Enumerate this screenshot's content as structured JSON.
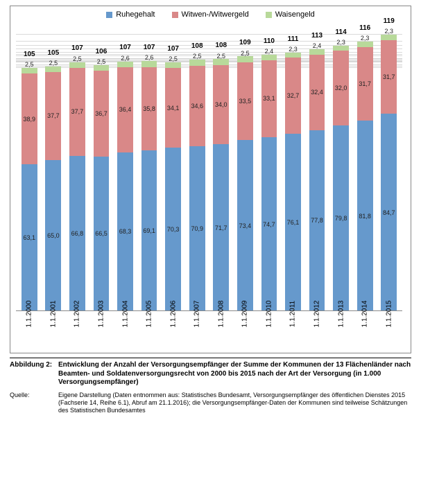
{
  "chart": {
    "type": "stacked-bar",
    "legend": [
      {
        "key": "ruhegehalt",
        "label": "Ruhegehalt",
        "color": "#6699cc"
      },
      {
        "key": "witwen",
        "label": "Witwen-/Witwergeld",
        "color": "#d98888"
      },
      {
        "key": "waisen",
        "label": "Waisengeld",
        "color": "#b8d99a"
      }
    ],
    "label_fontsize": 10,
    "total_fontsize": 10,
    "grid_color": "#d9d9d9",
    "baseline_color": "#888888",
    "ymax": 125,
    "categories": [
      "1.1.2000",
      "1.1.2001",
      "1.1.2002",
      "1.1.2003",
      "1.1.2004",
      "1.1.2005",
      "1.1.2006",
      "1.1.2007",
      "1.1.2008",
      "1.1.2009",
      "1.1.2010",
      "1.1.2011",
      "1.1.2012",
      "1.1.2013",
      "1.1.2014",
      "1.1.2015"
    ],
    "series": {
      "ruhegehalt": [
        63.1,
        65.0,
        66.8,
        66.5,
        68.3,
        69.1,
        70.3,
        70.9,
        71.7,
        73.4,
        74.7,
        76.1,
        77.8,
        79.8,
        81.8,
        84.7
      ],
      "witwen": [
        38.9,
        37.7,
        37.7,
        36.7,
        36.4,
        35.8,
        34.1,
        34.6,
        34.0,
        33.5,
        33.1,
        32.7,
        32.4,
        32.0,
        31.7,
        31.7
      ],
      "waisen": [
        2.5,
        2.5,
        2.5,
        2.5,
        2.6,
        2.6,
        2.5,
        2.5,
        2.5,
        2.5,
        2.4,
        2.3,
        2.4,
        2.3,
        2.3,
        2.3
      ]
    },
    "labels": {
      "ruhegehalt": [
        "63,1",
        "65,0",
        "66,8",
        "66,5",
        "68,3",
        "69,1",
        "70,3",
        "70,9",
        "71,7",
        "73,4",
        "74,7",
        "76,1",
        "77,8",
        "79,8",
        "81,8",
        "84,7"
      ],
      "witwen": [
        "38,9",
        "37,7",
        "37,7",
        "36,7",
        "36,4",
        "35,8",
        "34,1",
        "34,6",
        "34,0",
        "33,5",
        "33,1",
        "32,7",
        "32,4",
        "32,0",
        "31,7",
        "31,7"
      ],
      "waisen": [
        "2,5",
        "2,5",
        "2,5",
        "2,5",
        "2,6",
        "2,6",
        "2,5",
        "2,5",
        "2,5",
        "2,5",
        "2,4",
        "2,3",
        "2,4",
        "2,3",
        "2,3",
        "2,3"
      ]
    },
    "totals": [
      "105",
      "105",
      "107",
      "106",
      "107",
      "107",
      "107",
      "108",
      "108",
      "109",
      "110",
      "111",
      "113",
      "114",
      "116",
      "119"
    ]
  },
  "caption": {
    "fig_label": "Abbildung 2:",
    "title": "Entwicklung der Anzahl der Versorgungsempfänger der Summe der Kommunen der 13 Flächenländer nach Beamten- und Soldatenversorgungsrecht von 2000 bis 2015 nach der Art der Versorgung (in 1.000 Versorgungsempfänger)",
    "source_label": "Quelle:",
    "source": "Eigene Darstellung (Daten entnommen aus: Statistisches Bundesamt, Versorgungsempfänger des öffentlichen Dienstes 2015 (Fachserie 14, Reihe 6.1), Abruf am 21.1.2016); die Versorgungsempfänger-Daten der Kommunen sind teilweise Schätzungen des Statistischen Bundesamtes"
  }
}
